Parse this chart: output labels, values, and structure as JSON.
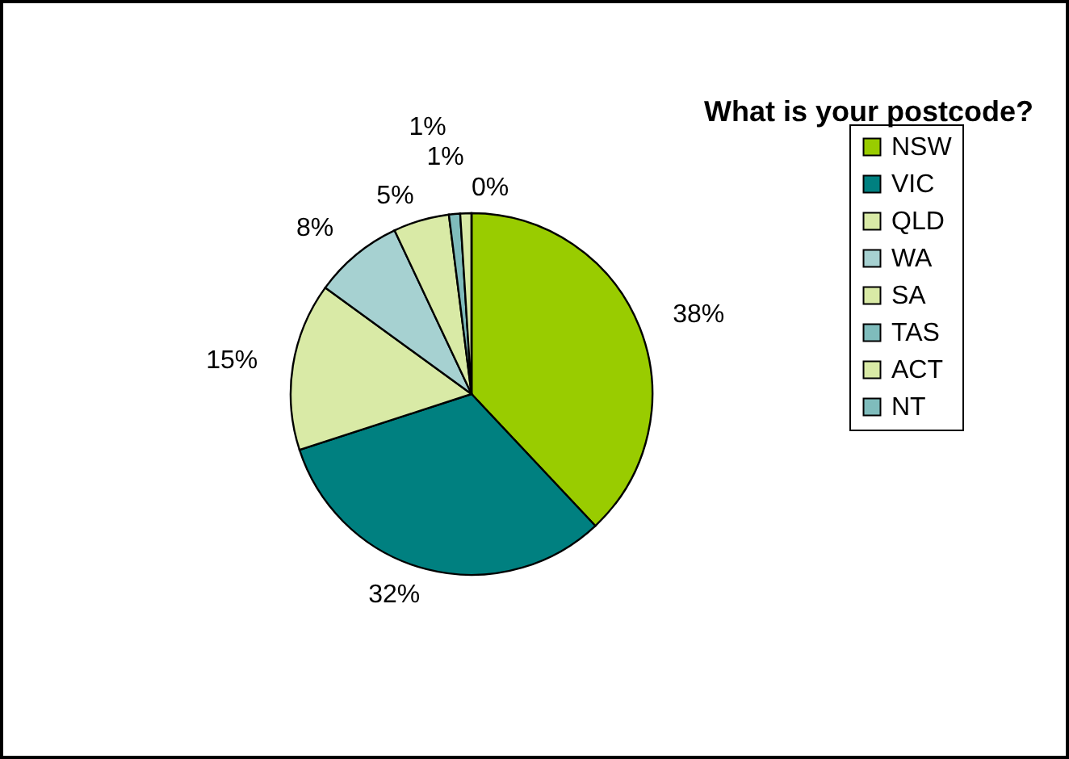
{
  "chart_data": {
    "type": "pie",
    "title": "What is your postcode?",
    "categories": [
      "NSW",
      "VIC",
      "QLD",
      "WA",
      "SA",
      "TAS",
      "ACT",
      "NT"
    ],
    "values": [
      38,
      32,
      15,
      8,
      5,
      1,
      1,
      0
    ],
    "value_labels": [
      "38%",
      "32%",
      "15%",
      "8%",
      "5%",
      "1%",
      "1%",
      "0%"
    ],
    "colors": [
      "#99cc00",
      "#008080",
      "#d9eaa6",
      "#a6d1d1",
      "#d9eaa6",
      "#7fbcbc",
      "#d9eaa6",
      "#7fbcbc"
    ],
    "legend": "right"
  }
}
